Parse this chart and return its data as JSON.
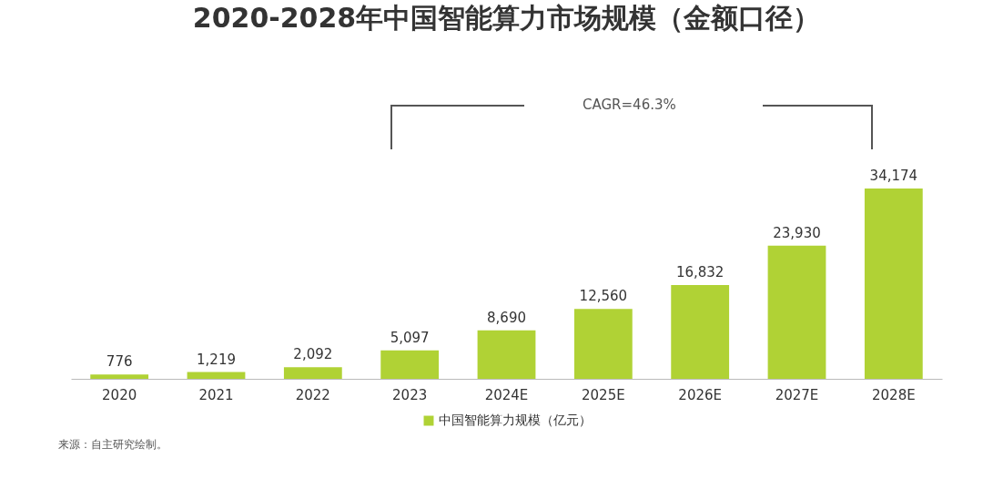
{
  "chart_data": {
    "type": "bar",
    "title": "2020-2028年中国智能算力市场规模（金额口径）",
    "categories": [
      "2020",
      "2021",
      "2022",
      "2023",
      "2024E",
      "2025E",
      "2026E",
      "2027E",
      "2028E"
    ],
    "series": [
      {
        "name": "中国智能算力规模（亿元）",
        "color": "#b0d235",
        "values": [
          776,
          1219,
          2092,
          5097,
          8690,
          12560,
          16832,
          23930,
          34174
        ],
        "value_labels": [
          "776",
          "1,219",
          "2,092",
          "5,097",
          "8,690",
          "12,560",
          "16,832",
          "23,930",
          "34,174"
        ]
      }
    ],
    "legend": "bottom",
    "annotations": [
      "CAGR=46.3%",
      "来源：自主研究绘制。"
    ]
  }
}
